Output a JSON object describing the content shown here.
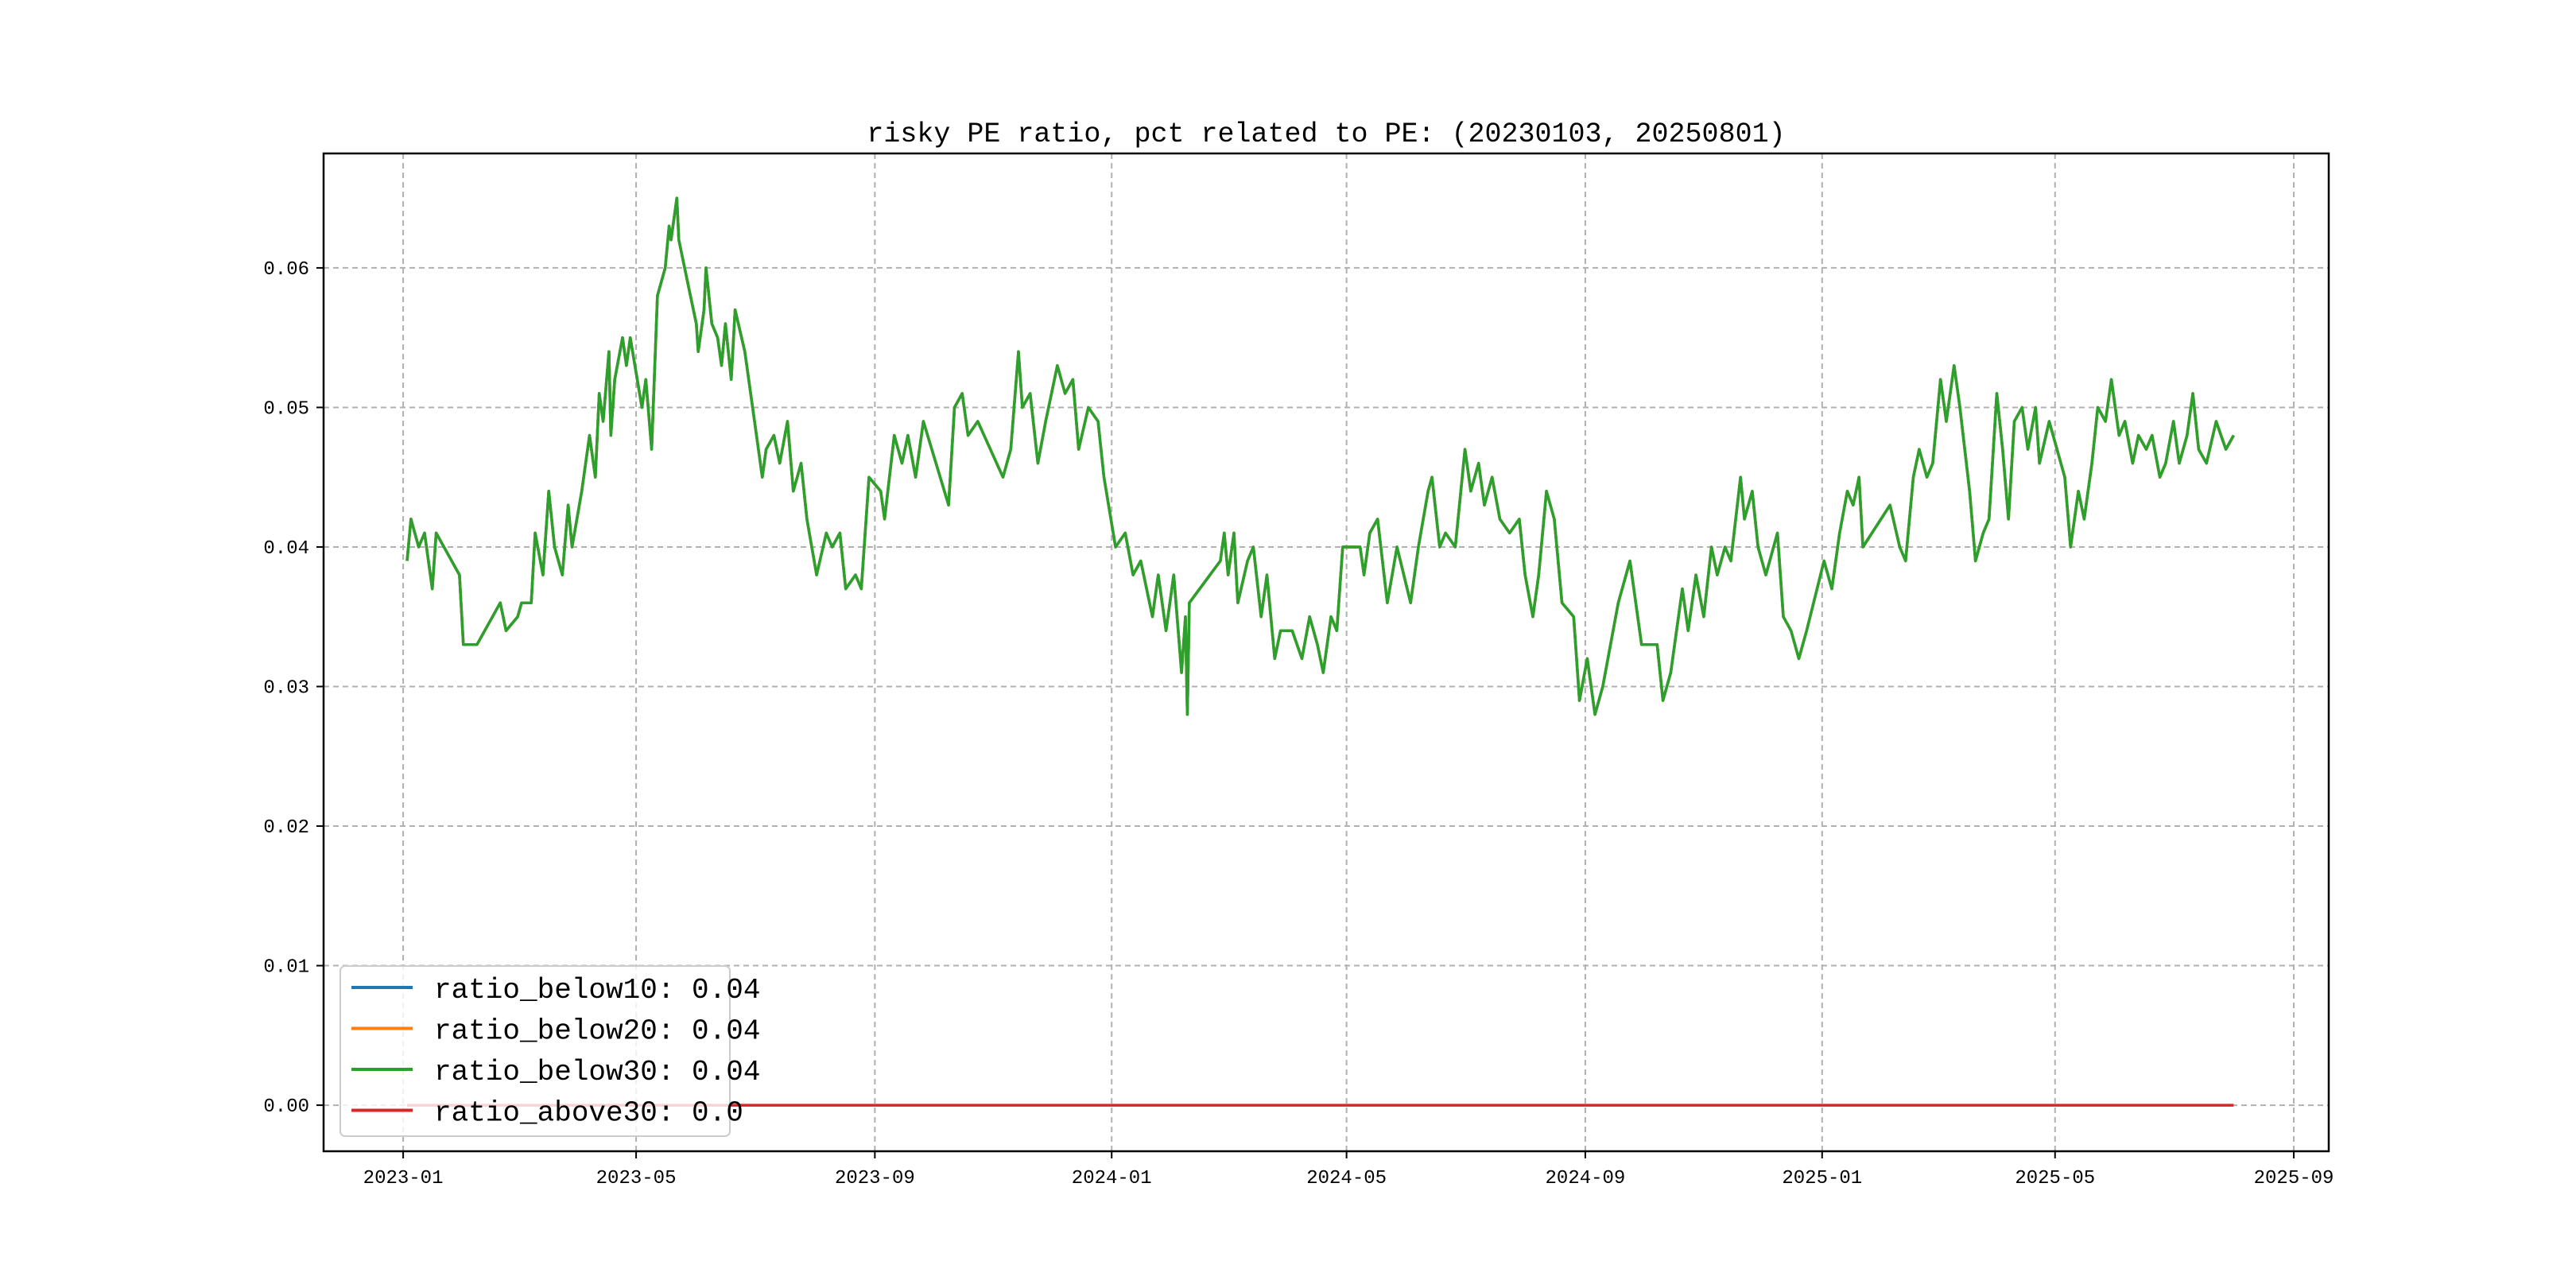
{
  "chart_data": {
    "type": "line",
    "title": "risky PE ratio, pct related to PE: (20230103, 20250801)",
    "xlabel": "",
    "ylabel": "",
    "xlim": [
      "2022-11-21",
      "2025-09-19"
    ],
    "ylim": [
      -0.0033,
      0.0682
    ],
    "grid": true,
    "legend_position": "lower-left",
    "x_ticks": [
      "2023-01",
      "2023-05",
      "2023-09",
      "2024-01",
      "2024-05",
      "2024-09",
      "2025-01",
      "2025-05",
      "2025-09"
    ],
    "y_ticks": [
      "0.00",
      "0.01",
      "0.02",
      "0.03",
      "0.04",
      "0.05",
      "0.06"
    ],
    "y_tick_values": [
      0,
      0.01,
      0.02,
      0.03,
      0.04,
      0.05,
      0.06
    ],
    "legend": [
      {
        "label": "ratio_below10: 0.04",
        "color": "#1f77b4"
      },
      {
        "label": "ratio_below20: 0.04",
        "color": "#ff7f0e"
      },
      {
        "label": "ratio_below30: 0.04",
        "color": "#2ca02c"
      },
      {
        "label": "ratio_above30: 0.0",
        "color": "#d62728"
      }
    ],
    "x": [
      "2023-01-03",
      "2023-01-05",
      "2023-01-09",
      "2023-01-12",
      "2023-01-16",
      "2023-01-18",
      "2023-01-30",
      "2023-02-01",
      "2023-02-08",
      "2023-02-20",
      "2023-02-23",
      "2023-03-01",
      "2023-03-03",
      "2023-03-08",
      "2023-03-10",
      "2023-03-14",
      "2023-03-17",
      "2023-03-20",
      "2023-03-24",
      "2023-03-27",
      "2023-03-29",
      "2023-04-03",
      "2023-04-07",
      "2023-04-10",
      "2023-04-12",
      "2023-04-14",
      "2023-04-17",
      "2023-04-18",
      "2023-04-20",
      "2023-04-24",
      "2023-04-26",
      "2023-04-28",
      "2023-05-04",
      "2023-05-06",
      "2023-05-09",
      "2023-05-12",
      "2023-05-16",
      "2023-05-18",
      "2023-05-19",
      "2023-05-22",
      "2023-05-23",
      "2023-05-29",
      "2023-06-01",
      "2023-06-02",
      "2023-06-05",
      "2023-06-06",
      "2023-06-09",
      "2023-06-12",
      "2023-06-14",
      "2023-06-16",
      "2023-06-19",
      "2023-06-21",
      "2023-06-26",
      "2023-06-30",
      "2023-07-05",
      "2023-07-07",
      "2023-07-11",
      "2023-07-14",
      "2023-07-18",
      "2023-07-21",
      "2023-07-25",
      "2023-07-28",
      "2023-08-02",
      "2023-08-07",
      "2023-08-10",
      "2023-08-14",
      "2023-08-17",
      "2023-08-22",
      "2023-08-25",
      "2023-08-29",
      "2023-09-04",
      "2023-09-06",
      "2023-09-11",
      "2023-09-15",
      "2023-09-18",
      "2023-09-22",
      "2023-09-26",
      "2023-10-09",
      "2023-10-12",
      "2023-10-16",
      "2023-10-19",
      "2023-10-24",
      "2023-11-06",
      "2023-11-10",
      "2023-11-14",
      "2023-11-16",
      "2023-11-20",
      "2023-11-24",
      "2023-11-28",
      "2023-12-04",
      "2023-12-08",
      "2023-12-12",
      "2023-12-15",
      "2023-12-20",
      "2023-12-25",
      "2023-12-28",
      "2024-01-03",
      "2024-01-08",
      "2024-01-12",
      "2024-01-16",
      "2024-01-22",
      "2024-01-25",
      "2024-01-29",
      "2024-02-02",
      "2024-02-06",
      "2024-02-08",
      "2024-02-09",
      "2024-02-10",
      "2024-02-26",
      "2024-02-28",
      "2024-03-01",
      "2024-03-04",
      "2024-03-06",
      "2024-03-11",
      "2024-03-14",
      "2024-03-18",
      "2024-03-21",
      "2024-03-25",
      "2024-03-28",
      "2024-04-03",
      "2024-04-08",
      "2024-04-12",
      "2024-04-16",
      "2024-04-19",
      "2024-04-23",
      "2024-04-26",
      "2024-04-29",
      "2024-05-08",
      "2024-05-10",
      "2024-05-13",
      "2024-05-17",
      "2024-05-22",
      "2024-05-27",
      "2024-06-03",
      "2024-06-07",
      "2024-06-12",
      "2024-06-14",
      "2024-06-18",
      "2024-06-21",
      "2024-06-26",
      "2024-07-01",
      "2024-07-04",
      "2024-07-08",
      "2024-07-11",
      "2024-07-15",
      "2024-07-19",
      "2024-07-24",
      "2024-07-29",
      "2024-08-01",
      "2024-08-05",
      "2024-08-08",
      "2024-08-12",
      "2024-08-16",
      "2024-08-20",
      "2024-08-26",
      "2024-08-29",
      "2024-09-02",
      "2024-09-06",
      "2024-09-10",
      "2024-09-18",
      "2024-09-24",
      "2024-09-30",
      "2024-10-08",
      "2024-10-11",
      "2024-10-15",
      "2024-10-21",
      "2024-10-24",
      "2024-10-28",
      "2024-11-01",
      "2024-11-05",
      "2024-11-08",
      "2024-11-12",
      "2024-11-15",
      "2024-11-20",
      "2024-11-22",
      "2024-11-26",
      "2024-11-29",
      "2024-12-03",
      "2024-12-09",
      "2024-12-12",
      "2024-12-16",
      "2024-12-20",
      "2024-12-24",
      "2025-01-02",
      "2025-01-06",
      "2025-01-10",
      "2025-01-14",
      "2025-01-17",
      "2025-01-20",
      "2025-01-22",
      "2025-02-05",
      "2025-02-10",
      "2025-02-13",
      "2025-02-17",
      "2025-02-20",
      "2025-02-24",
      "2025-02-27",
      "2025-03-03",
      "2025-03-06",
      "2025-03-10",
      "2025-03-13",
      "2025-03-18",
      "2025-03-21",
      "2025-03-25",
      "2025-03-28",
      "2025-04-01",
      "2025-04-04",
      "2025-04-07",
      "2025-04-10",
      "2025-04-14",
      "2025-04-17",
      "2025-04-21",
      "2025-04-23",
      "2025-04-28",
      "2025-05-06",
      "2025-05-09",
      "2025-05-13",
      "2025-05-16",
      "2025-05-20",
      "2025-05-23",
      "2025-05-27",
      "2025-05-30",
      "2025-06-03",
      "2025-06-06",
      "2025-06-10",
      "2025-06-13",
      "2025-06-17",
      "2025-06-20",
      "2025-06-24",
      "2025-06-27",
      "2025-07-01",
      "2025-07-04",
      "2025-07-08",
      "2025-07-11",
      "2025-07-14",
      "2025-07-18",
      "2025-07-23",
      "2025-07-28",
      "2025-08-01"
    ],
    "series": [
      {
        "name": "ratio_below10",
        "color": "#1f77b4",
        "same_as": "ratio_below30"
      },
      {
        "name": "ratio_below20",
        "color": "#ff7f0e",
        "same_as": "ratio_below30"
      },
      {
        "name": "ratio_below30",
        "color": "#2ca02c",
        "values": [
          0.039,
          0.042,
          0.04,
          0.041,
          0.037,
          0.041,
          0.038,
          0.033,
          0.033,
          0.036,
          0.034,
          0.035,
          0.036,
          0.036,
          0.041,
          0.038,
          0.044,
          0.04,
          0.038,
          0.043,
          0.04,
          0.044,
          0.048,
          0.045,
          0.051,
          0.049,
          0.054,
          0.048,
          0.052,
          0.055,
          0.053,
          0.055,
          0.05,
          0.052,
          0.047,
          0.058,
          0.06,
          0.063,
          0.062,
          0.065,
          0.062,
          0.058,
          0.056,
          0.054,
          0.057,
          0.06,
          0.056,
          0.055,
          0.053,
          0.056,
          0.052,
          0.057,
          0.054,
          0.05,
          0.045,
          0.047,
          0.048,
          0.046,
          0.049,
          0.044,
          0.046,
          0.042,
          0.038,
          0.041,
          0.04,
          0.041,
          0.037,
          0.038,
          0.037,
          0.045,
          0.044,
          0.042,
          0.048,
          0.046,
          0.048,
          0.045,
          0.049,
          0.043,
          0.05,
          0.051,
          0.048,
          0.049,
          0.045,
          0.047,
          0.054,
          0.05,
          0.051,
          0.046,
          0.049,
          0.053,
          0.051,
          0.052,
          0.047,
          0.05,
          0.049,
          0.045,
          0.04,
          0.041,
          0.038,
          0.039,
          0.035,
          0.038,
          0.034,
          0.038,
          0.031,
          0.035,
          0.028,
          0.036,
          0.039,
          0.041,
          0.038,
          0.041,
          0.036,
          0.039,
          0.04,
          0.035,
          0.038,
          0.032,
          0.034,
          0.034,
          0.032,
          0.035,
          0.033,
          0.031,
          0.035,
          0.034,
          0.04,
          0.04,
          0.038,
          0.041,
          0.042,
          0.036,
          0.04,
          0.036,
          0.04,
          0.044,
          0.045,
          0.04,
          0.041,
          0.04,
          0.047,
          0.044,
          0.046,
          0.043,
          0.045,
          0.042,
          0.041,
          0.042,
          0.038,
          0.035,
          0.038,
          0.044,
          0.042,
          0.036,
          0.035,
          0.029,
          0.032,
          0.028,
          0.03,
          0.036,
          0.039,
          0.033,
          0.033,
          0.029,
          0.031,
          0.037,
          0.034,
          0.038,
          0.035,
          0.04,
          0.038,
          0.04,
          0.039,
          0.045,
          0.042,
          0.044,
          0.04,
          0.038,
          0.041,
          0.035,
          0.034,
          0.032,
          0.034,
          0.039,
          0.037,
          0.041,
          0.044,
          0.043,
          0.045,
          0.04,
          0.043,
          0.04,
          0.039,
          0.045,
          0.047,
          0.045,
          0.046,
          0.052,
          0.049,
          0.053,
          0.05,
          0.044,
          0.039,
          0.041,
          0.042,
          0.051,
          0.047,
          0.042,
          0.049,
          0.05,
          0.047,
          0.05,
          0.046,
          0.049,
          0.045,
          0.04,
          0.044,
          0.042,
          0.046,
          0.05,
          0.049,
          0.052,
          0.048,
          0.049,
          0.046,
          0.048,
          0.047,
          0.048,
          0.045,
          0.046,
          0.049,
          0.046,
          0.048,
          0.051,
          0.047,
          0.046,
          0.049,
          0.047,
          0.048
        ]
      },
      {
        "name": "ratio_above30",
        "color": "#d62728",
        "constant": 0.0
      }
    ]
  }
}
